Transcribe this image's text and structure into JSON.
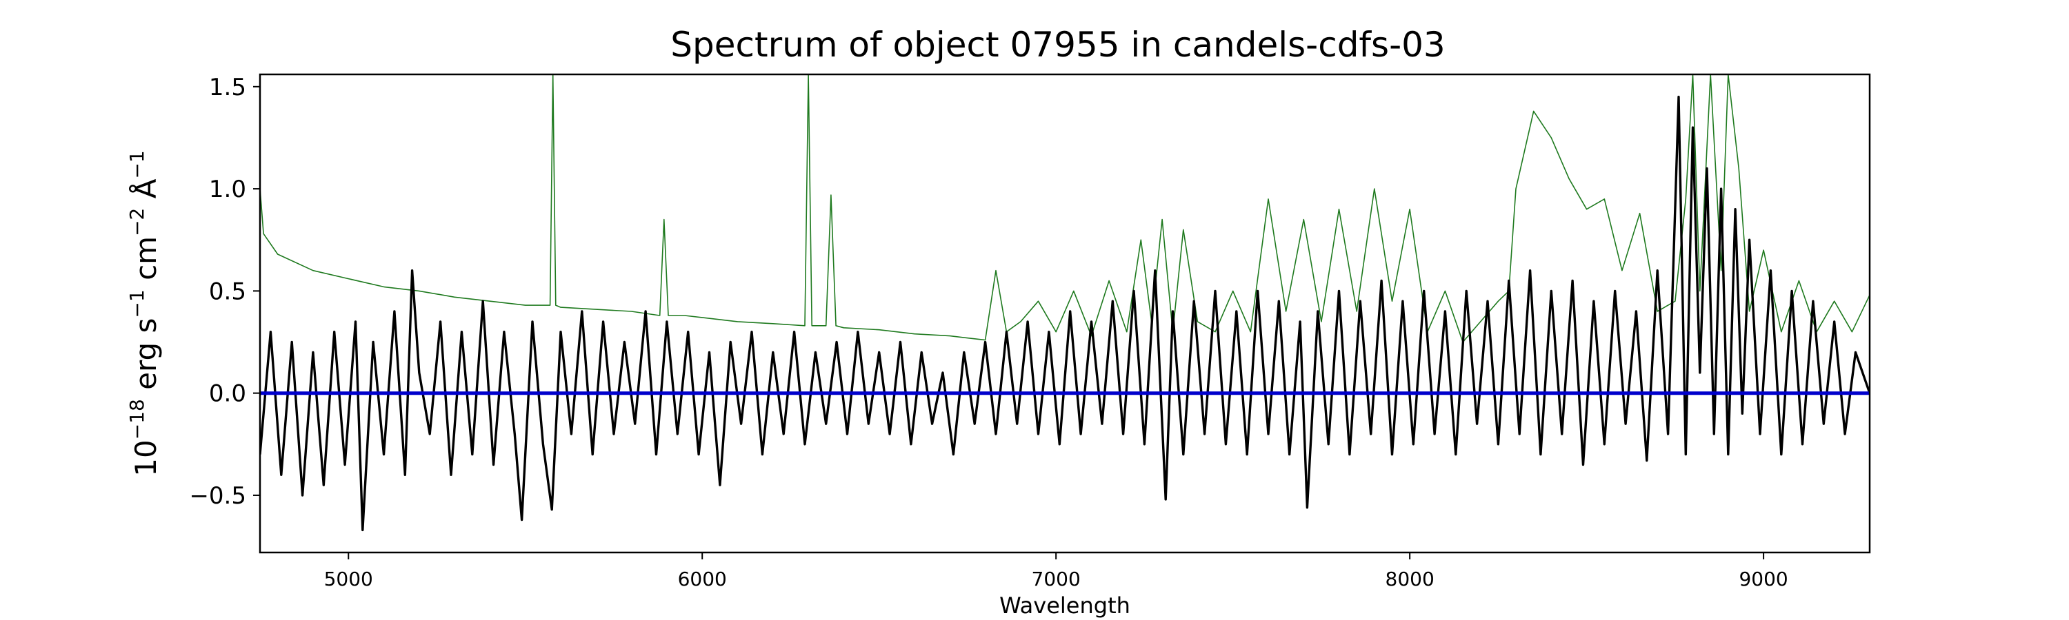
{
  "chart_data": {
    "type": "line",
    "title": "Spectrum of object 07955 in candels-cdfs-03",
    "xlabel": "Wavelength",
    "ylabel_parts": [
      "10",
      "−18",
      " erg s",
      "−1",
      " cm",
      "−2",
      " Å",
      "−1"
    ],
    "xlim": [
      4750,
      9300
    ],
    "ylim": [
      -0.78,
      1.56
    ],
    "x_ticks": [
      5000,
      6000,
      7000,
      8000,
      9000
    ],
    "y_ticks": [
      -0.5,
      0.0,
      0.5,
      1.0,
      1.5
    ],
    "y_tick_labels": [
      "−0.5",
      "0.0",
      "0.5",
      "1.0",
      "1.5"
    ],
    "grid": false,
    "series": [
      {
        "color": "#1f7a1f",
        "style": "thin",
        "x": [
          4750,
          4760,
          4800,
          4900,
          5000,
          5100,
          5200,
          5300,
          5400,
          5500,
          5570,
          5578,
          5586,
          5600,
          5700,
          5800,
          5880,
          5892,
          5904,
          5950,
          6000,
          6100,
          6200,
          6290,
          6300,
          6310,
          6350,
          6364,
          6378,
          6400,
          6500,
          6600,
          6700,
          6800,
          6830,
          6860,
          6900,
          6950,
          7000,
          7050,
          7100,
          7150,
          7200,
          7240,
          7270,
          7300,
          7330,
          7360,
          7400,
          7450,
          7500,
          7550,
          7600,
          7650,
          7700,
          7750,
          7800,
          7850,
          7900,
          7950,
          8000,
          8050,
          8100,
          8150,
          8200,
          8250,
          8280,
          8300,
          8350,
          8400,
          8450,
          8500,
          8550,
          8600,
          8650,
          8700,
          8750,
          8780,
          8800,
          8820,
          8850,
          8880,
          8900,
          8930,
          8960,
          9000,
          9050,
          9100,
          9150,
          9200,
          9250,
          9300
        ],
        "y": [
          1.0,
          0.78,
          0.68,
          0.6,
          0.56,
          0.52,
          0.5,
          0.47,
          0.45,
          0.43,
          0.43,
          1.56,
          0.43,
          0.42,
          0.41,
          0.4,
          0.38,
          0.85,
          0.38,
          0.38,
          0.37,
          0.35,
          0.34,
          0.33,
          1.56,
          0.33,
          0.33,
          0.97,
          0.33,
          0.32,
          0.31,
          0.29,
          0.28,
          0.26,
          0.6,
          0.3,
          0.35,
          0.45,
          0.3,
          0.5,
          0.28,
          0.55,
          0.3,
          0.75,
          0.35,
          0.85,
          0.3,
          0.8,
          0.35,
          0.3,
          0.5,
          0.3,
          0.95,
          0.4,
          0.85,
          0.35,
          0.9,
          0.4,
          1.0,
          0.45,
          0.9,
          0.3,
          0.5,
          0.25,
          0.35,
          0.45,
          0.5,
          1.0,
          1.38,
          1.25,
          1.05,
          0.9,
          0.95,
          0.6,
          0.88,
          0.4,
          0.45,
          0.95,
          1.56,
          0.5,
          1.56,
          0.6,
          1.56,
          1.1,
          0.4,
          0.7,
          0.3,
          0.55,
          0.3,
          0.45,
          0.3,
          0.48
        ]
      },
      {
        "color": "#000000",
        "style": "thick",
        "x": [
          4750,
          4780,
          4810,
          4840,
          4870,
          4900,
          4930,
          4960,
          4990,
          5020,
          5040,
          5070,
          5100,
          5130,
          5160,
          5180,
          5200,
          5230,
          5260,
          5290,
          5320,
          5350,
          5380,
          5410,
          5440,
          5470,
          5490,
          5520,
          5550,
          5575,
          5600,
          5630,
          5660,
          5690,
          5720,
          5750,
          5780,
          5810,
          5840,
          5870,
          5900,
          5930,
          5960,
          5990,
          6020,
          6050,
          6080,
          6110,
          6140,
          6170,
          6200,
          6230,
          6260,
          6290,
          6320,
          6350,
          6380,
          6410,
          6440,
          6470,
          6500,
          6530,
          6560,
          6590,
          6620,
          6650,
          6680,
          6710,
          6740,
          6770,
          6800,
          6830,
          6860,
          6890,
          6920,
          6950,
          6980,
          7010,
          7040,
          7070,
          7100,
          7130,
          7160,
          7190,
          7220,
          7250,
          7280,
          7310,
          7330,
          7360,
          7390,
          7420,
          7450,
          7480,
          7510,
          7540,
          7570,
          7600,
          7630,
          7660,
          7690,
          7710,
          7740,
          7770,
          7800,
          7830,
          7860,
          7890,
          7920,
          7950,
          7980,
          8010,
          8040,
          8070,
          8100,
          8130,
          8160,
          8190,
          8220,
          8250,
          8280,
          8310,
          8340,
          8370,
          8400,
          8430,
          8460,
          8490,
          8520,
          8550,
          8580,
          8610,
          8640,
          8670,
          8700,
          8730,
          8760,
          8780,
          8800,
          8820,
          8840,
          8860,
          8880,
          8900,
          8920,
          8940,
          8960,
          8990,
          9020,
          9050,
          9080,
          9110,
          9140,
          9170,
          9200,
          9230,
          9260,
          9300
        ],
        "y": [
          -0.3,
          0.3,
          -0.4,
          0.25,
          -0.5,
          0.2,
          -0.45,
          0.3,
          -0.35,
          0.35,
          -0.67,
          0.25,
          -0.3,
          0.4,
          -0.4,
          0.6,
          0.1,
          -0.2,
          0.35,
          -0.4,
          0.3,
          -0.3,
          0.45,
          -0.35,
          0.3,
          -0.2,
          -0.62,
          0.35,
          -0.25,
          -0.57,
          0.3,
          -0.2,
          0.4,
          -0.3,
          0.35,
          -0.2,
          0.25,
          -0.15,
          0.4,
          -0.3,
          0.35,
          -0.2,
          0.3,
          -0.3,
          0.2,
          -0.45,
          0.25,
          -0.15,
          0.3,
          -0.3,
          0.2,
          -0.2,
          0.3,
          -0.25,
          0.2,
          -0.15,
          0.25,
          -0.2,
          0.3,
          -0.15,
          0.2,
          -0.2,
          0.25,
          -0.25,
          0.2,
          -0.15,
          0.1,
          -0.3,
          0.2,
          -0.15,
          0.25,
          -0.2,
          0.3,
          -0.15,
          0.35,
          -0.2,
          0.3,
          -0.25,
          0.4,
          -0.2,
          0.35,
          -0.15,
          0.45,
          -0.2,
          0.5,
          -0.25,
          0.6,
          -0.52,
          0.4,
          -0.3,
          0.45,
          -0.2,
          0.5,
          -0.25,
          0.4,
          -0.3,
          0.5,
          -0.2,
          0.45,
          -0.3,
          0.35,
          -0.56,
          0.4,
          -0.25,
          0.5,
          -0.3,
          0.45,
          -0.2,
          0.55,
          -0.3,
          0.45,
          -0.25,
          0.5,
          -0.2,
          0.4,
          -0.3,
          0.5,
          -0.15,
          0.45,
          -0.25,
          0.55,
          -0.2,
          0.6,
          -0.3,
          0.5,
          -0.2,
          0.55,
          -0.35,
          0.45,
          -0.25,
          0.5,
          -0.15,
          0.4,
          -0.33,
          0.6,
          -0.2,
          1.45,
          -0.3,
          1.3,
          0.1,
          1.1,
          -0.2,
          1.0,
          -0.3,
          0.9,
          -0.1,
          0.75,
          -0.2,
          0.6,
          -0.3,
          0.5,
          -0.25,
          0.45,
          -0.15,
          0.35,
          -0.2,
          0.2,
          0.0
        ]
      },
      {
        "color": "#0000cc",
        "style": "flat",
        "x": [
          4750,
          9300
        ],
        "y": [
          0.0,
          0.0
        ]
      }
    ]
  }
}
